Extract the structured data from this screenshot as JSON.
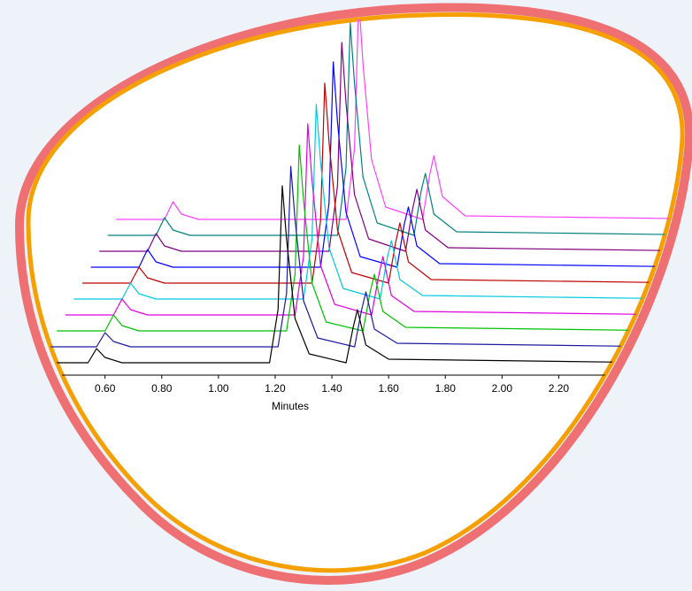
{
  "chart_data": {
    "type": "waterfall",
    "x_label": "Minutes",
    "xlim": [
      0.37,
      2.57
    ],
    "xticks": [
      {
        "value": 0.6,
        "label": "0.60"
      },
      {
        "value": 0.8,
        "label": "0.80"
      },
      {
        "value": 1.0,
        "label": "1.00"
      },
      {
        "value": 1.2,
        "label": "1.20"
      },
      {
        "value": 1.4,
        "label": "1.40"
      },
      {
        "value": 1.6,
        "label": "1.60"
      },
      {
        "value": 1.8,
        "label": "1.80"
      },
      {
        "value": 2.0,
        "label": "2.00"
      },
      {
        "value": 2.2,
        "label": "2.20"
      }
    ],
    "x": [
      0.37,
      0.54,
      0.57,
      0.6,
      0.66,
      1.18,
      1.21,
      1.225,
      1.24,
      1.27,
      1.32,
      1.45,
      1.475,
      1.49,
      1.52,
      1.6,
      2.57
    ],
    "series": [
      {
        "color": "#000000",
        "values": [
          0,
          0,
          0.08,
          0.03,
          0,
          0,
          0.3,
          1.0,
          0.7,
          0.25,
          0.05,
          0,
          0.2,
          0.3,
          0.1,
          0.02,
          0
        ]
      },
      {
        "color": "#1a1aa0",
        "values": [
          0,
          0,
          0.08,
          0.03,
          0,
          0,
          0.3,
          1.02,
          0.72,
          0.26,
          0.05,
          0,
          0.21,
          0.31,
          0.1,
          0.02,
          0
        ]
      },
      {
        "color": "#00c000",
        "values": [
          0,
          0,
          0.09,
          0.03,
          0,
          0,
          0.32,
          1.05,
          0.74,
          0.27,
          0.05,
          0,
          0.22,
          0.32,
          0.11,
          0.02,
          0
        ]
      },
      {
        "color": "#e000e0",
        "values": [
          0,
          0,
          0.09,
          0.03,
          0,
          0,
          0.33,
          1.08,
          0.76,
          0.28,
          0.06,
          0,
          0.22,
          0.33,
          0.11,
          0.02,
          0
        ]
      },
      {
        "color": "#00c8e0",
        "values": [
          0,
          0,
          0.09,
          0.03,
          0,
          0,
          0.34,
          1.1,
          0.78,
          0.29,
          0.06,
          0,
          0.23,
          0.33,
          0.11,
          0.02,
          0
        ]
      },
      {
        "color": "#c00000",
        "values": [
          0,
          0,
          0.09,
          0.03,
          0,
          0,
          0.35,
          1.13,
          0.8,
          0.3,
          0.06,
          0,
          0.23,
          0.34,
          0.12,
          0.02,
          0
        ]
      },
      {
        "color": "#0000ff",
        "values": [
          0,
          0,
          0.1,
          0.03,
          0,
          0,
          0.36,
          1.16,
          0.82,
          0.31,
          0.06,
          0,
          0.24,
          0.34,
          0.12,
          0.02,
          0
        ]
      },
      {
        "color": "#800080",
        "values": [
          0,
          0,
          0.1,
          0.03,
          0,
          0,
          0.37,
          1.18,
          0.84,
          0.32,
          0.07,
          0,
          0.24,
          0.35,
          0.12,
          0.02,
          0
        ]
      },
      {
        "color": "#008080",
        "values": [
          0,
          0,
          0.1,
          0.03,
          0,
          0,
          0.38,
          1.2,
          0.86,
          0.33,
          0.07,
          0,
          0.25,
          0.35,
          0.12,
          0.02,
          0
        ]
      },
      {
        "color": "#ff40ff",
        "values": [
          0,
          0,
          0.1,
          0.03,
          0,
          0,
          0.4,
          1.25,
          0.88,
          0.34,
          0.07,
          0,
          0.25,
          0.36,
          0.13,
          0.02,
          0
        ]
      }
    ]
  }
}
